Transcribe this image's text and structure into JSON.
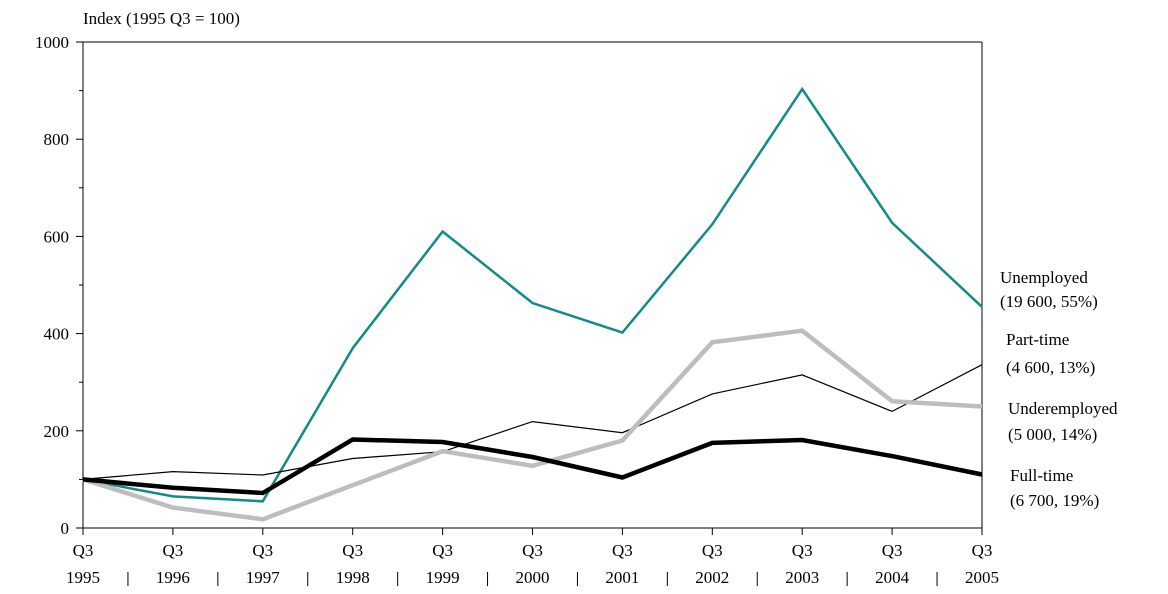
{
  "chart_data": {
    "type": "line",
    "ylabel": "Index (1995 Q3 = 100)",
    "ylim": [
      0,
      1000
    ],
    "yticks": [
      0,
      200,
      400,
      600,
      800,
      1000
    ],
    "x_quarter_label": "Q3",
    "x": [
      "1995",
      "1996",
      "1997",
      "1998",
      "1999",
      "2000",
      "2001",
      "2002",
      "2003",
      "2004",
      "2005"
    ],
    "grid": false,
    "series": [
      {
        "key": "unemployed",
        "name": "Unemployed",
        "note": "(19 600, 55%)",
        "color": "#138a8a",
        "values": [
          100,
          65,
          55,
          370,
          610,
          463,
          402,
          625,
          903,
          628,
          455
        ]
      },
      {
        "key": "part_time",
        "name": "Part-time",
        "note": "(4 600, 13%)",
        "color": "#000000",
        "values": [
          100,
          116,
          109,
          143,
          157,
          219,
          196,
          276,
          315,
          240,
          336
        ]
      },
      {
        "key": "underemployed",
        "name": "Underemployed",
        "note": "(5 000, 14%)",
        "color": "#bdbdbd",
        "values": [
          100,
          42,
          18,
          88,
          158,
          128,
          180,
          382,
          406,
          261,
          250
        ]
      },
      {
        "key": "full_time",
        "name": "Full-time",
        "note": "(6 700, 19%)",
        "color": "#000000",
        "values": [
          100,
          83,
          72,
          182,
          177,
          146,
          104,
          175,
          181,
          148,
          110
        ]
      }
    ]
  }
}
